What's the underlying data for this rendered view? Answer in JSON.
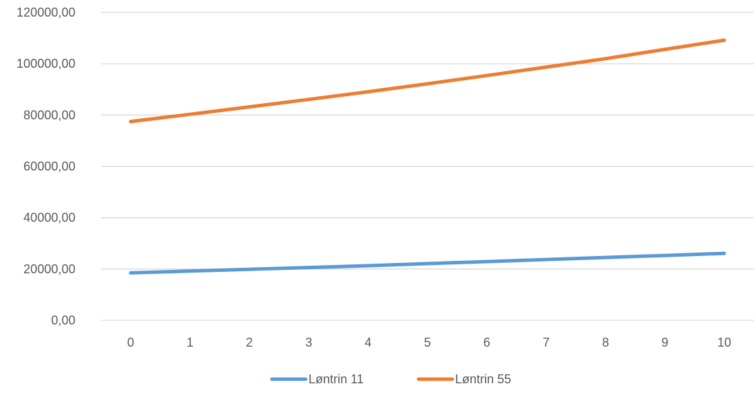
{
  "chart_data": {
    "type": "line",
    "title": "",
    "xlabel": "",
    "ylabel": "",
    "x": [
      0,
      1,
      2,
      3,
      4,
      5,
      6,
      7,
      8,
      9,
      10
    ],
    "ylim": [
      0,
      120000
    ],
    "yticks": [
      0,
      20000,
      40000,
      60000,
      80000,
      100000,
      120000
    ],
    "ytick_labels": [
      "0,00",
      "20000,00",
      "40000,00",
      "60000,00",
      "80000,00",
      "100000,00",
      "120000,00"
    ],
    "xtick_labels": [
      "0",
      "1",
      "2",
      "3",
      "4",
      "5",
      "6",
      "7",
      "8",
      "9",
      "10"
    ],
    "grid": "horizontal",
    "legend_position": "bottom",
    "series": [
      {
        "name": "Løntrin 11",
        "color": "#5B9BD5",
        "values": [
          18500,
          19200,
          19900,
          20600,
          21300,
          22100,
          22900,
          23700,
          24500,
          25300,
          26100
        ]
      },
      {
        "name": "Løntrin 55",
        "color": "#ED7D31",
        "values": [
          77500,
          80300,
          83200,
          86100,
          89100,
          92200,
          95400,
          98700,
          102000,
          105600,
          109200
        ]
      }
    ]
  }
}
